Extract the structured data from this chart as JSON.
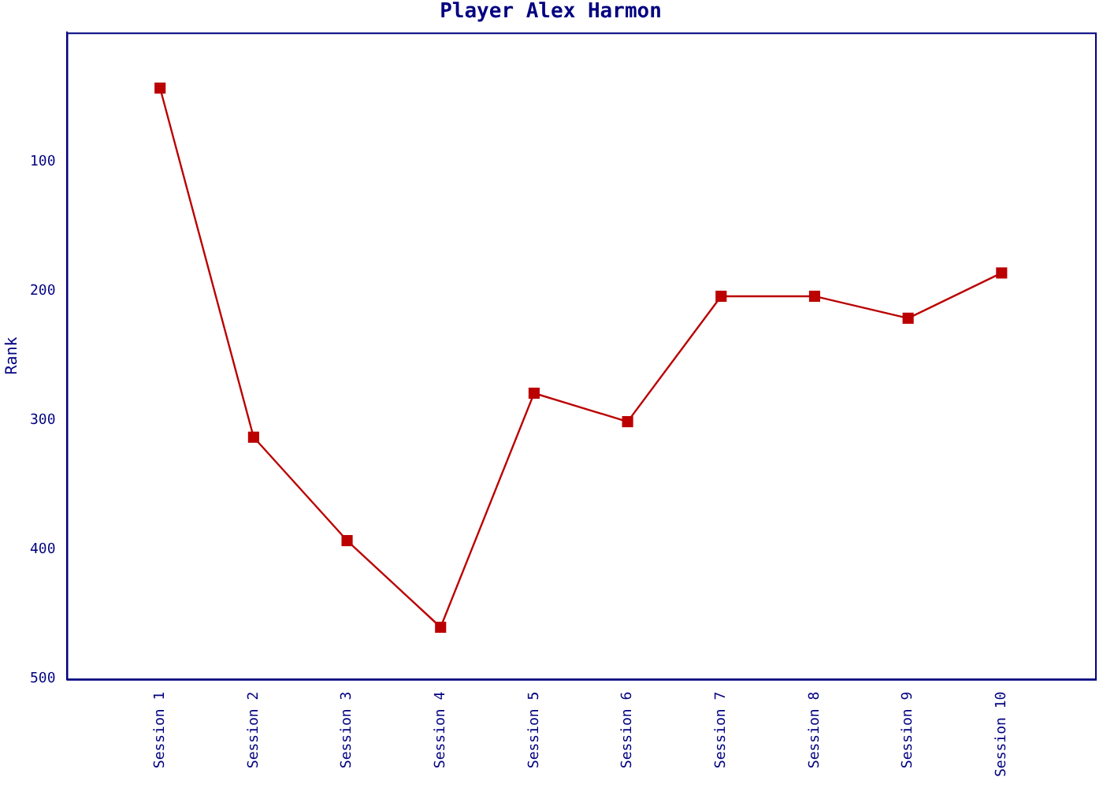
{
  "chart_data": {
    "type": "line",
    "title": "Player Alex Harmon",
    "ylabel": "Rank",
    "categories": [
      "Session 1",
      "Session 2",
      "Session 3",
      "Session 4",
      "Session 5",
      "Session 6",
      "Session 7",
      "Session 8",
      "Session 9",
      "Session 10"
    ],
    "series": [
      {
        "color": "#bb0000",
        "values": [
          43,
          313,
          393,
          460,
          279,
          301,
          204,
          204,
          221,
          186
        ]
      }
    ],
    "ylim": [
      500,
      0
    ],
    "yticks": [
      100,
      200,
      300,
      400,
      500
    ],
    "grid": false,
    "legend": false,
    "marker": "square",
    "line_style": "solid"
  }
}
